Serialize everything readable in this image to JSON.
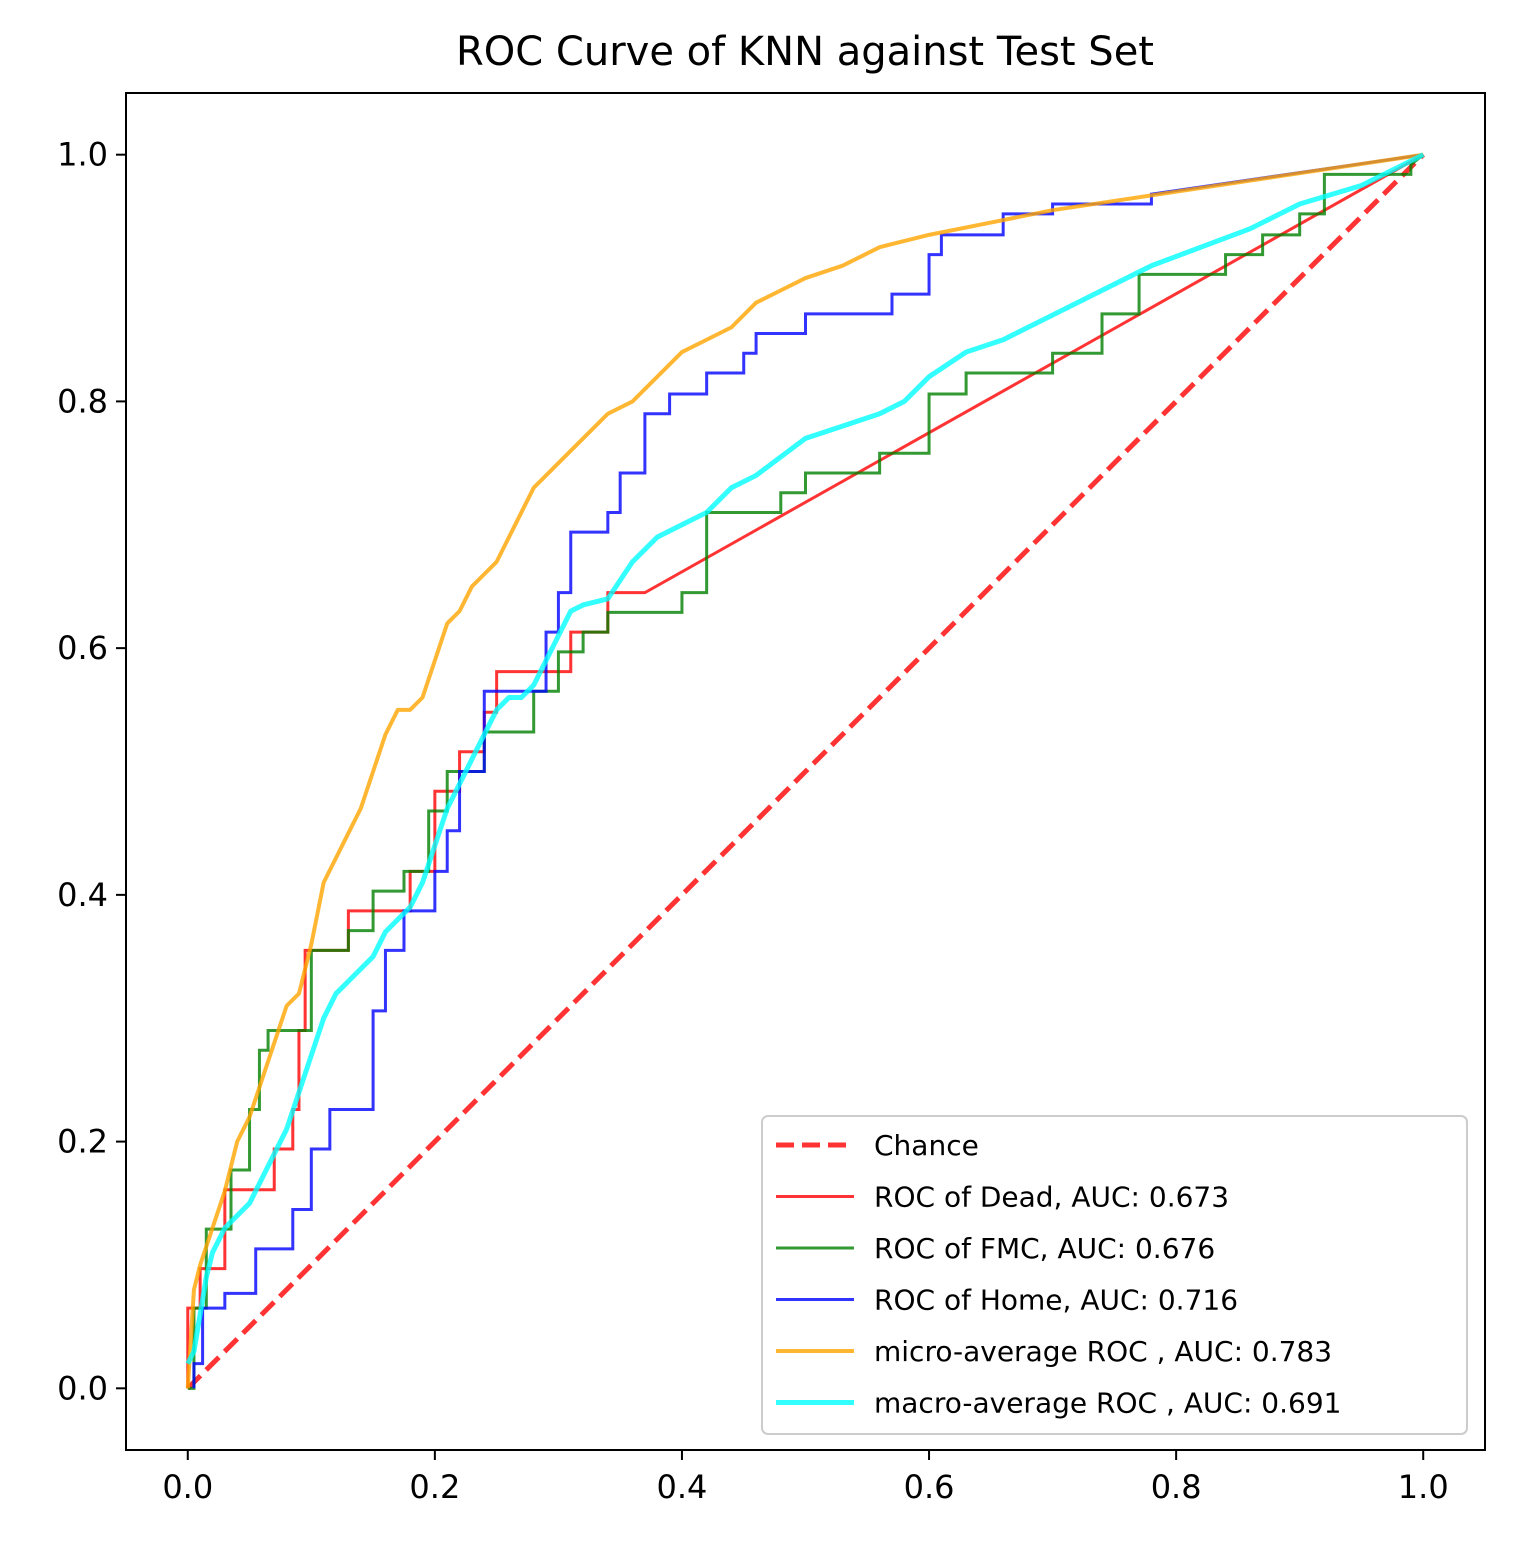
{
  "chart_data": {
    "type": "line",
    "title": "ROC Curve of KNN against Test Set",
    "xlabel": "",
    "ylabel": "",
    "xlim": [
      -0.05,
      1.05
    ],
    "ylim": [
      -0.05,
      1.05
    ],
    "xticks": [
      0.0,
      0.2,
      0.4,
      0.6,
      0.8,
      1.0
    ],
    "yticks": [
      0.0,
      0.2,
      0.4,
      0.6,
      0.8,
      1.0
    ],
    "xtick_labels": [
      "0.0",
      "0.2",
      "0.4",
      "0.6",
      "0.8",
      "1.0"
    ],
    "ytick_labels": [
      "0.0",
      "0.2",
      "0.4",
      "0.6",
      "0.8",
      "1.0"
    ],
    "grid": false,
    "legend_position": "bottom-right",
    "series": [
      {
        "name": "Chance",
        "color": "#ff0000",
        "dashed": true,
        "width": 5,
        "opacity": 0.8,
        "step": false,
        "points": [
          [
            0,
            0
          ],
          [
            1,
            1
          ]
        ]
      },
      {
        "name": "ROC of Dead, AUC: 0.673",
        "color": "#ff0000",
        "dashed": false,
        "width": 3,
        "opacity": 0.8,
        "step": true,
        "points": [
          [
            0,
            0
          ],
          [
            0,
            0.065
          ],
          [
            0.01,
            0.065
          ],
          [
            0.01,
            0.097
          ],
          [
            0.03,
            0.097
          ],
          [
            0.03,
            0.161
          ],
          [
            0.07,
            0.161
          ],
          [
            0.07,
            0.194
          ],
          [
            0.085,
            0.194
          ],
          [
            0.085,
            0.226
          ],
          [
            0.09,
            0.226
          ],
          [
            0.09,
            0.29
          ],
          [
            0.095,
            0.29
          ],
          [
            0.095,
            0.355
          ],
          [
            0.13,
            0.355
          ],
          [
            0.13,
            0.387
          ],
          [
            0.18,
            0.387
          ],
          [
            0.18,
            0.419
          ],
          [
            0.2,
            0.419
          ],
          [
            0.2,
            0.484
          ],
          [
            0.22,
            0.484
          ],
          [
            0.22,
            0.516
          ],
          [
            0.24,
            0.516
          ],
          [
            0.24,
            0.548
          ],
          [
            0.25,
            0.548
          ],
          [
            0.25,
            0.581
          ],
          [
            0.31,
            0.581
          ],
          [
            0.31,
            0.613
          ],
          [
            0.34,
            0.613
          ],
          [
            0.34,
            0.645
          ],
          [
            0.37,
            0.645
          ],
          [
            1.0,
            1.0
          ]
        ]
      },
      {
        "name": "ROC of FMC, AUC: 0.676",
        "color": "#008000",
        "dashed": false,
        "width": 3,
        "opacity": 0.8,
        "step": true,
        "points": [
          [
            0,
            0
          ],
          [
            0.005,
            0
          ],
          [
            0.005,
            0.065
          ],
          [
            0.015,
            0.065
          ],
          [
            0.015,
            0.129
          ],
          [
            0.035,
            0.129
          ],
          [
            0.035,
            0.177
          ],
          [
            0.05,
            0.177
          ],
          [
            0.05,
            0.226
          ],
          [
            0.058,
            0.226
          ],
          [
            0.058,
            0.274
          ],
          [
            0.065,
            0.274
          ],
          [
            0.065,
            0.29
          ],
          [
            0.1,
            0.29
          ],
          [
            0.1,
            0.355
          ],
          [
            0.13,
            0.355
          ],
          [
            0.13,
            0.371
          ],
          [
            0.15,
            0.371
          ],
          [
            0.15,
            0.403
          ],
          [
            0.175,
            0.403
          ],
          [
            0.175,
            0.419
          ],
          [
            0.195,
            0.419
          ],
          [
            0.195,
            0.468
          ],
          [
            0.21,
            0.468
          ],
          [
            0.21,
            0.5
          ],
          [
            0.24,
            0.5
          ],
          [
            0.24,
            0.532
          ],
          [
            0.28,
            0.532
          ],
          [
            0.28,
            0.565
          ],
          [
            0.3,
            0.565
          ],
          [
            0.3,
            0.597
          ],
          [
            0.32,
            0.597
          ],
          [
            0.32,
            0.613
          ],
          [
            0.34,
            0.613
          ],
          [
            0.34,
            0.629
          ],
          [
            0.4,
            0.629
          ],
          [
            0.4,
            0.645
          ],
          [
            0.42,
            0.645
          ],
          [
            0.42,
            0.71
          ],
          [
            0.48,
            0.71
          ],
          [
            0.48,
            0.726
          ],
          [
            0.5,
            0.726
          ],
          [
            0.5,
            0.742
          ],
          [
            0.56,
            0.742
          ],
          [
            0.56,
            0.758
          ],
          [
            0.6,
            0.758
          ],
          [
            0.6,
            0.806
          ],
          [
            0.63,
            0.806
          ],
          [
            0.63,
            0.823
          ],
          [
            0.7,
            0.823
          ],
          [
            0.7,
            0.839
          ],
          [
            0.74,
            0.839
          ],
          [
            0.74,
            0.871
          ],
          [
            0.77,
            0.871
          ],
          [
            0.77,
            0.903
          ],
          [
            0.84,
            0.903
          ],
          [
            0.84,
            0.919
          ],
          [
            0.87,
            0.919
          ],
          [
            0.87,
            0.935
          ],
          [
            0.9,
            0.935
          ],
          [
            0.9,
            0.952
          ],
          [
            0.92,
            0.952
          ],
          [
            0.92,
            0.984
          ],
          [
            0.99,
            0.984
          ],
          [
            0.99,
            0.992
          ],
          [
            1.0,
            1.0
          ]
        ]
      },
      {
        "name": "ROC of Home, AUC: 0.716",
        "color": "#0000ff",
        "dashed": false,
        "width": 3,
        "opacity": 0.8,
        "step": true,
        "points": [
          [
            0.005,
            0
          ],
          [
            0.005,
            0.02
          ],
          [
            0.012,
            0.02
          ],
          [
            0.012,
            0.065
          ],
          [
            0.03,
            0.065
          ],
          [
            0.03,
            0.077
          ],
          [
            0.055,
            0.077
          ],
          [
            0.055,
            0.113
          ],
          [
            0.085,
            0.113
          ],
          [
            0.085,
            0.145
          ],
          [
            0.1,
            0.145
          ],
          [
            0.1,
            0.194
          ],
          [
            0.115,
            0.194
          ],
          [
            0.115,
            0.226
          ],
          [
            0.15,
            0.226
          ],
          [
            0.15,
            0.306
          ],
          [
            0.16,
            0.306
          ],
          [
            0.16,
            0.355
          ],
          [
            0.175,
            0.355
          ],
          [
            0.175,
            0.387
          ],
          [
            0.2,
            0.387
          ],
          [
            0.2,
            0.419
          ],
          [
            0.21,
            0.419
          ],
          [
            0.21,
            0.452
          ],
          [
            0.22,
            0.452
          ],
          [
            0.22,
            0.5
          ],
          [
            0.24,
            0.5
          ],
          [
            0.24,
            0.565
          ],
          [
            0.29,
            0.565
          ],
          [
            0.29,
            0.613
          ],
          [
            0.3,
            0.613
          ],
          [
            0.3,
            0.645
          ],
          [
            0.31,
            0.645
          ],
          [
            0.31,
            0.694
          ],
          [
            0.34,
            0.694
          ],
          [
            0.34,
            0.71
          ],
          [
            0.35,
            0.71
          ],
          [
            0.35,
            0.742
          ],
          [
            0.37,
            0.742
          ],
          [
            0.37,
            0.79
          ],
          [
            0.39,
            0.79
          ],
          [
            0.39,
            0.806
          ],
          [
            0.42,
            0.806
          ],
          [
            0.42,
            0.823
          ],
          [
            0.45,
            0.823
          ],
          [
            0.45,
            0.839
          ],
          [
            0.46,
            0.839
          ],
          [
            0.46,
            0.855
          ],
          [
            0.5,
            0.855
          ],
          [
            0.5,
            0.871
          ],
          [
            0.57,
            0.871
          ],
          [
            0.57,
            0.887
          ],
          [
            0.6,
            0.887
          ],
          [
            0.6,
            0.919
          ],
          [
            0.61,
            0.919
          ],
          [
            0.61,
            0.935
          ],
          [
            0.66,
            0.935
          ],
          [
            0.66,
            0.952
          ],
          [
            0.7,
            0.952
          ],
          [
            0.7,
            0.96
          ],
          [
            0.78,
            0.96
          ],
          [
            0.78,
            0.968
          ],
          [
            1.0,
            1.0
          ]
        ]
      },
      {
        "name": "micro-average ROC , AUC: 0.783",
        "color": "#ffa500",
        "dashed": false,
        "width": 4,
        "opacity": 0.8,
        "step": false,
        "points": [
          [
            0,
            0
          ],
          [
            0.005,
            0.08
          ],
          [
            0.01,
            0.1
          ],
          [
            0.02,
            0.13
          ],
          [
            0.03,
            0.16
          ],
          [
            0.04,
            0.2
          ],
          [
            0.05,
            0.22
          ],
          [
            0.06,
            0.25
          ],
          [
            0.07,
            0.28
          ],
          [
            0.08,
            0.31
          ],
          [
            0.09,
            0.32
          ],
          [
            0.1,
            0.36
          ],
          [
            0.11,
            0.41
          ],
          [
            0.12,
            0.43
          ],
          [
            0.13,
            0.45
          ],
          [
            0.14,
            0.47
          ],
          [
            0.15,
            0.5
          ],
          [
            0.16,
            0.53
          ],
          [
            0.17,
            0.55
          ],
          [
            0.18,
            0.55
          ],
          [
            0.19,
            0.56
          ],
          [
            0.2,
            0.59
          ],
          [
            0.21,
            0.62
          ],
          [
            0.22,
            0.63
          ],
          [
            0.23,
            0.65
          ],
          [
            0.24,
            0.66
          ],
          [
            0.25,
            0.67
          ],
          [
            0.26,
            0.69
          ],
          [
            0.27,
            0.71
          ],
          [
            0.28,
            0.73
          ],
          [
            0.29,
            0.74
          ],
          [
            0.3,
            0.75
          ],
          [
            0.32,
            0.77
          ],
          [
            0.34,
            0.79
          ],
          [
            0.36,
            0.8
          ],
          [
            0.38,
            0.82
          ],
          [
            0.4,
            0.84
          ],
          [
            0.42,
            0.85
          ],
          [
            0.44,
            0.86
          ],
          [
            0.46,
            0.88
          ],
          [
            0.48,
            0.89
          ],
          [
            0.5,
            0.9
          ],
          [
            0.53,
            0.91
          ],
          [
            0.56,
            0.925
          ],
          [
            0.6,
            0.935
          ],
          [
            0.65,
            0.945
          ],
          [
            0.7,
            0.955
          ],
          [
            0.8,
            0.97
          ],
          [
            0.9,
            0.985
          ],
          [
            1.0,
            1.0
          ]
        ]
      },
      {
        "name": "macro-average ROC , AUC: 0.691",
        "color": "#00ffff",
        "dashed": false,
        "width": 5,
        "opacity": 0.8,
        "step": false,
        "points": [
          [
            0,
            0.02
          ],
          [
            0.005,
            0.03
          ],
          [
            0.01,
            0.06
          ],
          [
            0.015,
            0.09
          ],
          [
            0.02,
            0.11
          ],
          [
            0.03,
            0.13
          ],
          [
            0.04,
            0.14
          ],
          [
            0.05,
            0.15
          ],
          [
            0.06,
            0.17
          ],
          [
            0.07,
            0.19
          ],
          [
            0.08,
            0.21
          ],
          [
            0.09,
            0.24
          ],
          [
            0.1,
            0.27
          ],
          [
            0.11,
            0.3
          ],
          [
            0.12,
            0.32
          ],
          [
            0.13,
            0.33
          ],
          [
            0.14,
            0.34
          ],
          [
            0.15,
            0.35
          ],
          [
            0.16,
            0.37
          ],
          [
            0.17,
            0.38
          ],
          [
            0.18,
            0.39
          ],
          [
            0.19,
            0.41
          ],
          [
            0.2,
            0.44
          ],
          [
            0.21,
            0.47
          ],
          [
            0.22,
            0.49
          ],
          [
            0.23,
            0.51
          ],
          [
            0.24,
            0.53
          ],
          [
            0.25,
            0.55
          ],
          [
            0.26,
            0.56
          ],
          [
            0.27,
            0.56
          ],
          [
            0.28,
            0.57
          ],
          [
            0.29,
            0.59
          ],
          [
            0.3,
            0.61
          ],
          [
            0.31,
            0.63
          ],
          [
            0.32,
            0.635
          ],
          [
            0.34,
            0.64
          ],
          [
            0.36,
            0.67
          ],
          [
            0.38,
            0.69
          ],
          [
            0.4,
            0.7
          ],
          [
            0.42,
            0.71
          ],
          [
            0.44,
            0.73
          ],
          [
            0.46,
            0.74
          ],
          [
            0.48,
            0.755
          ],
          [
            0.5,
            0.77
          ],
          [
            0.53,
            0.78
          ],
          [
            0.56,
            0.79
          ],
          [
            0.58,
            0.8
          ],
          [
            0.6,
            0.82
          ],
          [
            0.63,
            0.84
          ],
          [
            0.66,
            0.85
          ],
          [
            0.7,
            0.87
          ],
          [
            0.74,
            0.89
          ],
          [
            0.78,
            0.91
          ],
          [
            0.82,
            0.925
          ],
          [
            0.86,
            0.94
          ],
          [
            0.9,
            0.96
          ],
          [
            0.95,
            0.975
          ],
          [
            1.0,
            1.0
          ]
        ]
      }
    ]
  }
}
